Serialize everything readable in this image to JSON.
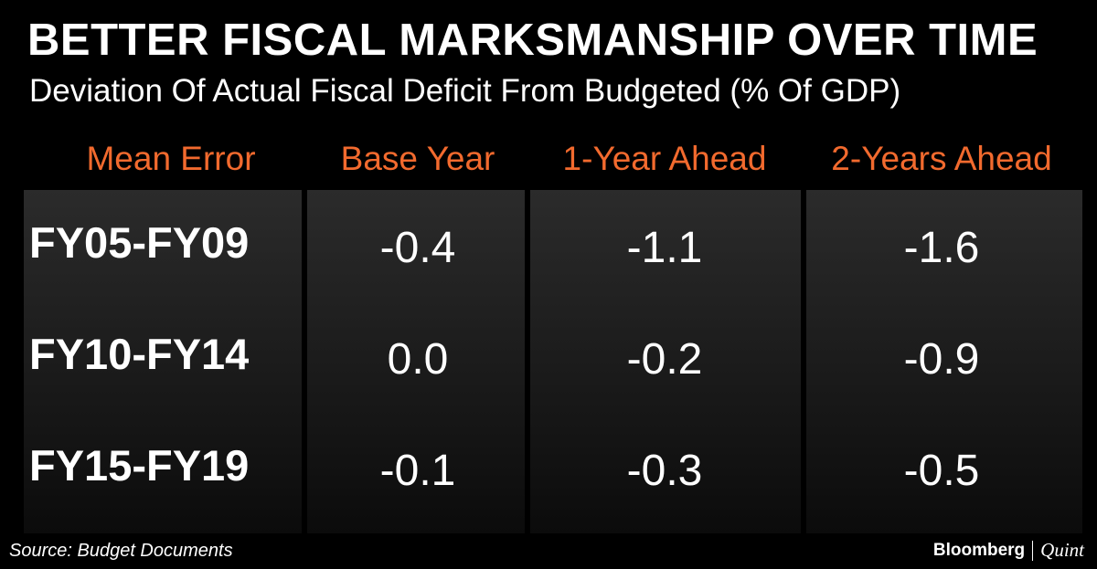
{
  "title": "BETTER FISCAL MARKSMANSHIP OVER TIME",
  "subtitle": "Deviation Of Actual Fiscal Deficit From Budgeted (% Of GDP)",
  "source": "Source: Budget Documents",
  "brand": {
    "primary": "Bloomberg",
    "secondary": "Quint"
  },
  "colors": {
    "header_text": "#F26A2E",
    "background": "#000000",
    "panel": "#222222",
    "text": "#FFFFFF"
  },
  "chart_data": {
    "type": "table",
    "title": "BETTER FISCAL MARKSMANSHIP OVER TIME",
    "subtitle": "Deviation Of Actual Fiscal Deficit From Budgeted (% Of GDP)",
    "columns": [
      "Mean Error",
      "Base Year",
      "1-Year Ahead",
      "2-Years Ahead"
    ],
    "rows": [
      {
        "label": "FY05-FY09",
        "values": [
          "-0.4",
          "-1.1",
          "-1.6"
        ]
      },
      {
        "label": "FY10-FY14",
        "values": [
          "0.0",
          "-0.2",
          "-0.9"
        ]
      },
      {
        "label": "FY15-FY19",
        "values": [
          "-0.1",
          "-0.3",
          "-0.5"
        ]
      }
    ]
  }
}
